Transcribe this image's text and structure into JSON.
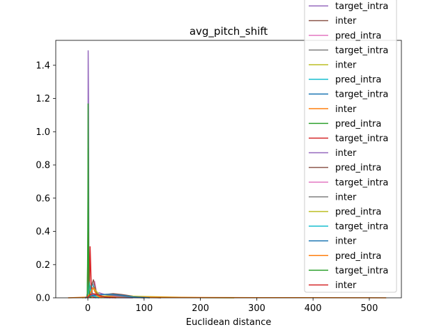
{
  "chart_data": {
    "type": "line",
    "title": "avg_pitch_shift",
    "xlabel": "Euclidean distance",
    "ylabel": "",
    "xlim": [
      -57,
      557
    ],
    "ylim": [
      0,
      1.55
    ],
    "xticks": [
      0,
      100,
      200,
      300,
      400,
      500
    ],
    "xtick_labels": [
      "0",
      "100",
      "200",
      "300",
      "400",
      "500"
    ],
    "yticks": [
      0.0,
      0.2,
      0.4,
      0.6,
      0.8,
      1.0,
      1.2,
      1.4
    ],
    "ytick_labels": [
      "0.0",
      "0.2",
      "0.4",
      "0.6",
      "0.8",
      "1.0",
      "1.2",
      "1.4"
    ],
    "grid": false,
    "legend_position": "top-right",
    "series": [
      {
        "name": "target_intra",
        "color": "#9467bd",
        "x": [
          -2,
          0,
          0.6,
          1.2,
          1.8,
          3,
          5,
          10,
          20,
          40,
          80
        ],
        "y": [
          0,
          0.05,
          1.49,
          1.2,
          0.3,
          0.02,
          0.01,
          0.005,
          0.003,
          0.001,
          0
        ]
      },
      {
        "name": "inter",
        "color": "#8c564b",
        "x": [
          -5,
          0,
          5,
          10,
          15,
          20,
          30,
          45,
          60,
          80,
          100,
          130
        ],
        "y": [
          0,
          0.005,
          0.04,
          0.07,
          0.03,
          0.02,
          0.02,
          0.025,
          0.02,
          0.01,
          0.004,
          0
        ]
      },
      {
        "name": "pred_intra",
        "color": "#e377c2",
        "x": [
          -3,
          0,
          3,
          8,
          12,
          15,
          20,
          30,
          45
        ],
        "y": [
          0,
          0.02,
          0.08,
          0.05,
          0.1,
          0.04,
          0.015,
          0.005,
          0
        ]
      },
      {
        "name": "target_intra",
        "color": "#7f7f7f",
        "x": [
          -3,
          0,
          2,
          5,
          10,
          20,
          40
        ],
        "y": [
          0,
          0.03,
          0.05,
          0.02,
          0.01,
          0.005,
          0
        ]
      },
      {
        "name": "inter",
        "color": "#bcbd22",
        "x": [
          -10,
          0,
          20,
          50,
          100,
          150,
          200,
          260
        ],
        "y": [
          0,
          0.005,
          0.01,
          0.012,
          0.008,
          0.004,
          0.001,
          0
        ]
      },
      {
        "name": "pred_intra",
        "color": "#17becf",
        "x": [
          -2,
          0,
          4,
          8,
          12,
          20,
          35
        ],
        "y": [
          0,
          0.01,
          0.06,
          0.09,
          0.04,
          0.01,
          0
        ]
      },
      {
        "name": "target_intra",
        "color": "#1f77b4",
        "x": [
          -2,
          0,
          1,
          2,
          5,
          10,
          20
        ],
        "y": [
          0,
          0.05,
          0.12,
          0.08,
          0.03,
          0.01,
          0
        ]
      },
      {
        "name": "inter",
        "color": "#ff7f0e",
        "x": [
          -35,
          0,
          50,
          100,
          200,
          300,
          400,
          500,
          530
        ],
        "y": [
          0,
          0.004,
          0.006,
          0.004,
          0.002,
          0.001,
          0.001,
          0.0005,
          0
        ]
      },
      {
        "name": "pred_intra",
        "color": "#2ca02c",
        "x": [
          -1,
          0,
          0.5,
          1,
          1.5,
          3,
          6
        ],
        "y": [
          0,
          0.4,
          1.17,
          0.6,
          0.1,
          0.01,
          0
        ]
      },
      {
        "name": "target_intra",
        "color": "#d62728",
        "x": [
          -1,
          0,
          1,
          2,
          3,
          4,
          5,
          6,
          8,
          10,
          15
        ],
        "y": [
          0,
          0.1,
          0.4,
          0.2,
          0.05,
          0.31,
          0.2,
          0.08,
          0.02,
          0.005,
          0
        ]
      },
      {
        "name": "inter",
        "color": "#9467bd",
        "x": [
          -5,
          0,
          10,
          20,
          30,
          50,
          70,
          100
        ],
        "y": [
          0,
          0.005,
          0.02,
          0.03,
          0.02,
          0.01,
          0.005,
          0
        ]
      },
      {
        "name": "pred_intra",
        "color": "#8c564b",
        "x": [
          -2,
          0,
          5,
          10,
          15,
          25
        ],
        "y": [
          0,
          0.01,
          0.05,
          0.11,
          0.03,
          0
        ]
      },
      {
        "name": "target_intra",
        "color": "#e377c2",
        "x": [
          -2,
          0,
          2,
          5,
          10,
          20
        ],
        "y": [
          0,
          0.04,
          0.07,
          0.03,
          0.01,
          0
        ]
      },
      {
        "name": "inter",
        "color": "#7f7f7f",
        "x": [
          -5,
          0,
          15,
          30,
          50,
          70,
          100
        ],
        "y": [
          0,
          0.005,
          0.015,
          0.02,
          0.015,
          0.005,
          0
        ]
      },
      {
        "name": "pred_intra",
        "color": "#bcbd22",
        "x": [
          -2,
          0,
          5,
          10,
          20,
          30
        ],
        "y": [
          0,
          0.01,
          0.04,
          0.06,
          0.02,
          0
        ]
      },
      {
        "name": "target_intra",
        "color": "#17becf",
        "x": [
          -2,
          0,
          2,
          5,
          10,
          20
        ],
        "y": [
          0,
          0.02,
          0.1,
          0.04,
          0.01,
          0
        ]
      },
      {
        "name": "inter",
        "color": "#1f77b4",
        "x": [
          -5,
          0,
          10,
          25,
          40,
          60,
          80,
          110
        ],
        "y": [
          0,
          0.005,
          0.015,
          0.02,
          0.022,
          0.015,
          0.006,
          0
        ]
      },
      {
        "name": "pred_intra",
        "color": "#ff7f0e",
        "x": [
          -2,
          0,
          5,
          10,
          15,
          25
        ],
        "y": [
          0,
          0.01,
          0.03,
          0.06,
          0.02,
          0
        ]
      },
      {
        "name": "target_intra",
        "color": "#2ca02c",
        "x": [
          -1,
          0,
          0.5,
          1,
          2,
          4
        ],
        "y": [
          0,
          0.3,
          0.9,
          0.4,
          0.05,
          0
        ]
      },
      {
        "name": "inter",
        "color": "#d62728",
        "x": [
          -3,
          0,
          5,
          10,
          20,
          30,
          50
        ],
        "y": [
          0,
          0.005,
          0.02,
          0.025,
          0.015,
          0.005,
          0
        ]
      }
    ]
  }
}
